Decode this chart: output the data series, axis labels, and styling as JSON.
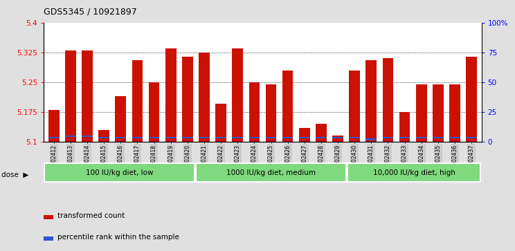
{
  "title": "GDS5345 / 10921897",
  "samples": [
    "GSM1502412",
    "GSM1502413",
    "GSM1502414",
    "GSM1502415",
    "GSM1502416",
    "GSM1502417",
    "GSM1502418",
    "GSM1502419",
    "GSM1502420",
    "GSM1502421",
    "GSM1502422",
    "GSM1502423",
    "GSM1502424",
    "GSM1502425",
    "GSM1502426",
    "GSM1502427",
    "GSM1502428",
    "GSM1502429",
    "GSM1502430",
    "GSM1502431",
    "GSM1502432",
    "GSM1502433",
    "GSM1502434",
    "GSM1502435",
    "GSM1502436",
    "GSM1502437"
  ],
  "red_values": [
    5.18,
    5.33,
    5.33,
    5.13,
    5.215,
    5.305,
    5.25,
    5.335,
    5.315,
    5.325,
    5.195,
    5.335,
    5.25,
    5.245,
    5.28,
    5.135,
    5.145,
    5.115,
    5.28,
    5.305,
    5.31,
    5.175,
    5.245,
    5.245,
    5.245,
    5.315
  ],
  "blue_heights": [
    0.004,
    0.004,
    0.004,
    0.004,
    0.004,
    0.004,
    0.004,
    0.004,
    0.004,
    0.004,
    0.004,
    0.004,
    0.004,
    0.004,
    0.004,
    0.004,
    0.004,
    0.004,
    0.004,
    0.004,
    0.004,
    0.004,
    0.004,
    0.004,
    0.004,
    0.004
  ],
  "blue_bottoms": [
    5.108,
    5.112,
    5.112,
    5.108,
    5.108,
    5.108,
    5.108,
    5.108,
    5.108,
    5.108,
    5.108,
    5.108,
    5.108,
    5.108,
    5.108,
    5.108,
    5.108,
    5.108,
    5.108,
    5.104,
    5.108,
    5.108,
    5.108,
    5.108,
    5.108,
    5.108
  ],
  "y_min": 5.1,
  "y_max": 5.4,
  "y_ticks": [
    5.1,
    5.175,
    5.25,
    5.325,
    5.4
  ],
  "right_y_ticks_pct": [
    0,
    25,
    50,
    75,
    100
  ],
  "right_y_tick_labels": [
    "0",
    "25",
    "50",
    "75",
    "100%"
  ],
  "groups": [
    {
      "label": "100 IU/kg diet, low",
      "start": 0,
      "end": 9
    },
    {
      "label": "1000 IU/kg diet, medium",
      "start": 9,
      "end": 18
    },
    {
      "label": "10,000 IU/kg diet, high",
      "start": 18,
      "end": 26
    }
  ],
  "group_color": "#7FD97F",
  "bar_color_red": "#CC1100",
  "bar_color_blue": "#3355CC",
  "plot_bg_color": "#FFFFFF",
  "fig_bg_color": "#E0E0E0",
  "tick_label_bg": "#CCCCCC",
  "legend_red": "transformed count",
  "legend_blue": "percentile rank within the sample"
}
